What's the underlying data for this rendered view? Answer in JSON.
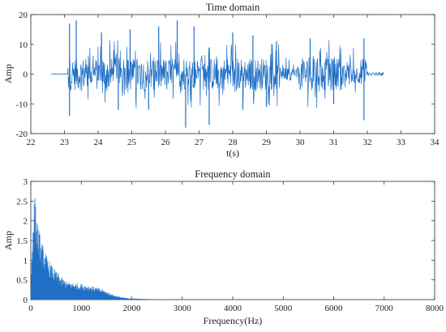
{
  "chart_data": [
    {
      "type": "line",
      "title": "Time domain",
      "xlabel": "t(s)",
      "ylabel": "Amp",
      "xlim": [
        22,
        34
      ],
      "ylim": [
        -20,
        20
      ],
      "xticks": [
        22,
        23,
        24,
        25,
        26,
        27,
        28,
        29,
        30,
        31,
        32,
        33,
        34
      ],
      "yticks": [
        -20,
        -10,
        0,
        10,
        20
      ],
      "grid": false,
      "line_color": "#1f6fc6",
      "series": [
        {
          "signal_start": 22.6,
          "signal_onset": 23.1,
          "signal_end": 32.0,
          "signal_stop": 32.5,
          "peaks": [
            {
              "t": 23.15,
              "v": 17
            },
            {
              "t": 23.15,
              "v": -14
            },
            {
              "t": 23.35,
              "v": 18
            },
            {
              "t": 24.1,
              "v": 14
            },
            {
              "t": 24.6,
              "v": -12
            },
            {
              "t": 24.95,
              "v": 15
            },
            {
              "t": 25.5,
              "v": -12
            },
            {
              "t": 25.8,
              "v": 16
            },
            {
              "t": 26.35,
              "v": 18
            },
            {
              "t": 26.6,
              "v": -18
            },
            {
              "t": 26.85,
              "v": 16
            },
            {
              "t": 27.3,
              "v": -17
            },
            {
              "t": 28.0,
              "v": 14
            },
            {
              "t": 28.3,
              "v": -12
            },
            {
              "t": 28.6,
              "v": 13
            },
            {
              "t": 29.0,
              "v": -11
            },
            {
              "t": 29.3,
              "v": 11
            },
            {
              "t": 30.3,
              "v": 12
            },
            {
              "t": 31.0,
              "v": -10
            },
            {
              "t": 31.9,
              "v": 12
            },
            {
              "t": 31.9,
              "v": -15.5
            }
          ]
        }
      ]
    },
    {
      "type": "area",
      "title": "Frequency domain",
      "xlabel": "Frequency(Hz)",
      "ylabel": "Amp",
      "xlim": [
        0,
        8000
      ],
      "ylim": [
        0,
        3
      ],
      "xticks": [
        0,
        1000,
        2000,
        3000,
        4000,
        5000,
        6000,
        7000,
        8000
      ],
      "yticks": [
        0,
        0.5,
        1,
        1.5,
        2,
        2.5,
        3
      ],
      "grid": false,
      "line_color": "#1f6fc6",
      "series": [
        {
          "peak_frequency": 80,
          "peak_amp": 2.55,
          "envelope": {
            "x": [
              0,
              50,
              80,
              120,
              200,
              300,
              400,
              500,
              600,
              700,
              800,
              900,
              1000,
              1100,
              1200,
              1300,
              1400,
              1500,
              1600,
              1700,
              1800,
              1900,
              2000,
              2200,
              2500,
              3000,
              8000
            ],
            "y": [
              0.3,
              2.3,
              2.55,
              2.0,
              1.45,
              1.1,
              0.85,
              0.7,
              0.55,
              0.45,
              0.42,
              0.4,
              0.38,
              0.36,
              0.33,
              0.3,
              0.26,
              0.2,
              0.14,
              0.09,
              0.06,
              0.04,
              0.03,
              0.02,
              0.01,
              0.005,
              0.004
            ]
          }
        }
      ]
    }
  ]
}
